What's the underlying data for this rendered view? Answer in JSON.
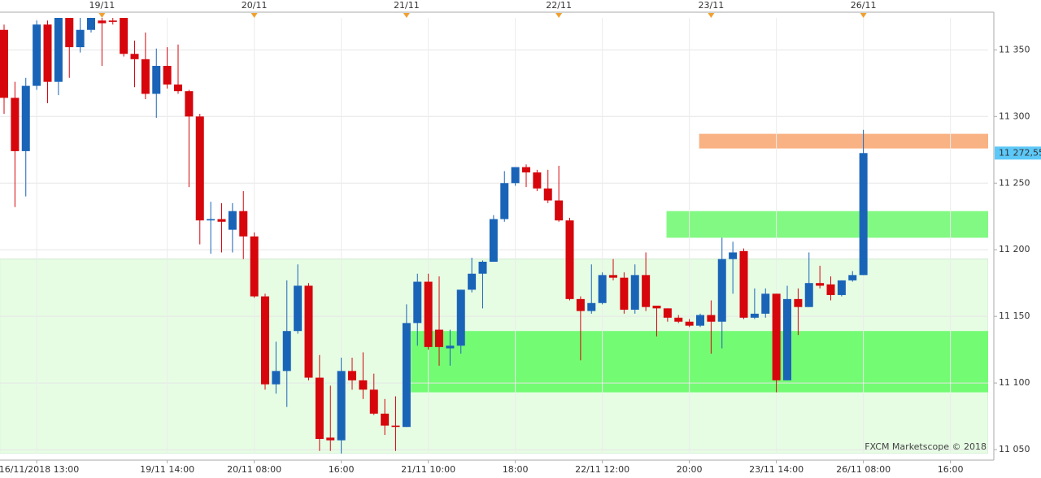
{
  "chart_data": {
    "type": "candlestick",
    "categories": [
      null,
      null,
      null,
      "16/11/2018 13:00",
      null,
      null,
      null,
      null,
      null,
      null,
      null,
      null,
      null,
      null,
      null,
      "19/11 14:00",
      null,
      null,
      null,
      null,
      null,
      null,
      null,
      "20/11 08:00",
      null,
      null,
      null,
      null,
      null,
      null,
      null,
      "16:00",
      null,
      null,
      null,
      null,
      null,
      null,
      null,
      "21/11 10:00",
      null,
      null,
      null,
      null,
      null,
      null,
      null,
      "18:00",
      null,
      null,
      null,
      null,
      null,
      null,
      null,
      "22/11 12:00",
      null,
      null,
      null,
      null,
      null,
      null,
      null,
      "20:00",
      null,
      null,
      null,
      null,
      null,
      null,
      null,
      "23/11 14:00",
      null,
      null,
      null,
      null,
      null,
      null,
      null,
      "26/11 08:00",
      null,
      null,
      null,
      null,
      null,
      null,
      null,
      "16:00",
      null,
      null
    ],
    "top_categories": [
      null,
      null,
      null,
      null,
      null,
      null,
      null,
      null,
      null,
      "19/11",
      null,
      null,
      null,
      null,
      null,
      null,
      null,
      null,
      null,
      null,
      null,
      null,
      null,
      "20/11",
      null,
      null,
      null,
      null,
      null,
      null,
      null,
      null,
      null,
      null,
      null,
      null,
      null,
      "21/11",
      null,
      null,
      null,
      null,
      null,
      null,
      null,
      null,
      null,
      null,
      null,
      null,
      null,
      "22/11",
      null,
      null,
      null,
      null,
      null,
      null,
      null,
      null,
      null,
      null,
      null,
      null,
      null,
      "23/11",
      null,
      null,
      null,
      null,
      null,
      null,
      null,
      null,
      null,
      null,
      null,
      null,
      null,
      "26/11",
      null,
      null,
      null,
      null,
      null,
      null,
      null,
      null,
      null,
      null
    ],
    "open": [
      11365,
      11314,
      11274,
      11323,
      11369,
      11326,
      11374,
      11352,
      11365,
      11372,
      11372,
      11374,
      11347,
      11343,
      11317,
      11338,
      11324,
      11319,
      11300,
      11222,
      11223,
      11215,
      11229,
      11210,
      11165,
      11099,
      11109,
      11139,
      11173,
      11104,
      11059,
      11057,
      11109,
      11102,
      11095,
      11077,
      11068,
      11067,
      11145,
      11176,
      11140,
      11126,
      11128,
      11170,
      11182,
      11191,
      11223,
      11250,
      11262,
      11258,
      11246,
      11237,
      11222,
      11163,
      11154,
      11160,
      11181,
      11179,
      11155,
      11181,
      11158,
      11156,
      11149,
      11146,
      11143,
      11151,
      11146,
      11193,
      11199,
      11149,
      11152,
      11167,
      11102,
      11163,
      11157,
      11175,
      11174,
      11166,
      11177,
      11181,
      null,
      null,
      null,
      null,
      null,
      null,
      null,
      null,
      null,
      null
    ],
    "high": [
      11369,
      11326,
      11329,
      11372,
      11372,
      11378,
      11378,
      11375,
      11378,
      11378,
      11376,
      11377,
      11357,
      11363,
      11351,
      11352,
      11354,
      11320,
      11302,
      11236,
      11235,
      11235,
      11244,
      11213,
      11167,
      11131,
      11177,
      11189,
      11175,
      11121,
      11098,
      11119,
      11119,
      11123,
      11107,
      11088,
      11090,
      11159,
      11182,
      11182,
      11180,
      11140,
      11170,
      11194,
      11192,
      11226,
      11259,
      11262,
      11264,
      11260,
      11260,
      11263,
      11224,
      11165,
      11189,
      11183,
      11193,
      11183,
      11189,
      11198,
      11158,
      11156,
      11151,
      11148,
      11152,
      11162,
      11209,
      11206,
      11201,
      11171,
      11171,
      11167,
      11173,
      11171,
      11198,
      11188,
      11180,
      11177,
      11184,
      11290,
      null,
      null,
      null,
      null,
      null,
      null,
      null,
      null,
      null,
      null
    ],
    "low": [
      11302,
      11232,
      11240,
      11320,
      11310,
      11316,
      11329,
      11348,
      11363,
      11338,
      11369,
      11345,
      11322,
      11313,
      11299,
      11321,
      11317,
      11247,
      11204,
      11197,
      11198,
      11198,
      11193,
      11164,
      11095,
      11092,
      11082,
      11137,
      11102,
      11049,
      11049,
      11047,
      11095,
      11088,
      11076,
      11061,
      11049,
      11067,
      11128,
      11125,
      11113,
      11113,
      11122,
      11168,
      11156,
      11191,
      11221,
      11248,
      11247,
      11244,
      11235,
      11221,
      11162,
      11117,
      11152,
      11159,
      11177,
      11152,
      11152,
      11154,
      11135,
      11146,
      11145,
      11142,
      11142,
      11122,
      11126,
      11167,
      11148,
      11148,
      11149,
      11093,
      11102,
      11136,
      11157,
      11171,
      11162,
      11165,
      11176,
      11181,
      null,
      null,
      null,
      null,
      null,
      null,
      null,
      null,
      null,
      null
    ],
    "close": [
      11314,
      11274,
      11323,
      11369,
      11326,
      11374,
      11352,
      11365,
      11374,
      11370,
      11371,
      11347,
      11343,
      11317,
      11338,
      11324,
      11319,
      11300,
      11222,
      11223,
      11221,
      11229,
      11210,
      11165,
      11099,
      11109,
      11139,
      11173,
      11104,
      11058,
      11057,
      11109,
      11102,
      11095,
      11077,
      11068,
      11067,
      11145,
      11176,
      11127,
      11127,
      11128,
      11170,
      11182,
      11191,
      11223,
      11250,
      11262,
      11258,
      11246,
      11237,
      11222,
      11163,
      11154,
      11160,
      11181,
      11179,
      11155,
      11181,
      11157,
      11156,
      11149,
      11146,
      11143,
      11151,
      11146,
      11193,
      11198,
      11149,
      11152,
      11167,
      11102,
      11163,
      11157,
      11175,
      11173,
      11166,
      11177,
      11181,
      11272.55,
      null,
      null,
      null,
      null,
      null,
      null,
      null,
      null,
      null,
      null
    ],
    "up_color": "#1a64b8",
    "down_color": "#d6060c",
    "zones": [
      {
        "low": 11047,
        "high": 11193,
        "from": -0.4,
        "color": "#e6fde4"
      },
      {
        "low": 11093,
        "high": 11139,
        "from": 37.4,
        "color": "#74fb74"
      },
      {
        "low": 11209,
        "high": 11229,
        "from": 60.9,
        "color": "#82f982"
      },
      {
        "low": 11276,
        "high": 11287,
        "from": 63.9,
        "color": "#f9b283"
      }
    ],
    "last_price": {
      "value": 11272.55,
      "label": "11 272,55"
    },
    "last_price_color": "#5cc8f8",
    "ylim": [
      11047,
      11374
    ],
    "yticks": [
      {
        "value": 11050,
        "label": "11 050"
      },
      {
        "value": 11100,
        "label": "11 100"
      },
      {
        "value": 11150,
        "label": "11 150"
      },
      {
        "value": 11200,
        "label": "11 200"
      },
      {
        "value": 11250,
        "label": "11 250"
      },
      {
        "value": 11300,
        "label": "11 300"
      },
      {
        "value": 11350,
        "label": "11 350"
      }
    ],
    "grid": true,
    "watermark": "FXCM Marketscope © 2018"
  }
}
